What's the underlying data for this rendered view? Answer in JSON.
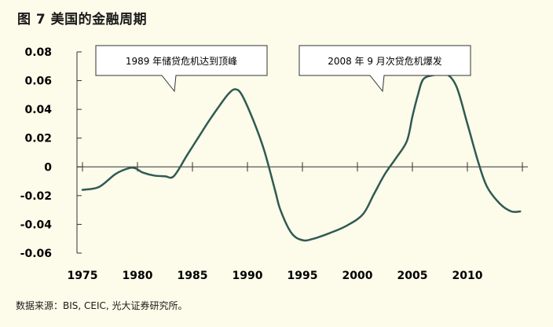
{
  "title": "图 7  美国的金融周期",
  "source": "数据来源：BIS, CEIC, 光大证券研究所。",
  "colors": {
    "line": "#2f5a55",
    "axis": "#333333",
    "background": "#fdfbe9"
  },
  "chart_data": {
    "type": "line",
    "title": "图 7  美国的金融周期",
    "xlabel": "",
    "ylabel": "",
    "xlim": [
      1974.5,
      2015.5
    ],
    "ylim": [
      -0.06,
      0.08
    ],
    "yticks": [
      0.08,
      0.06,
      0.04,
      0.02,
      0,
      -0.02,
      -0.04,
      -0.06
    ],
    "ytick_labels": [
      "0.08",
      "0.06",
      "0.04",
      "0.02",
      "0",
      "-0.02",
      "-0.04",
      "-0.06"
    ],
    "xticks": [
      1975,
      1980,
      1985,
      1990,
      1995,
      2000,
      2005,
      2010
    ],
    "xtick_labels": [
      "1975",
      "1980",
      "1985",
      "1990",
      "1995",
      "2000",
      "2005",
      "2010"
    ],
    "grid": false,
    "series": [
      {
        "x": [
          1975.0,
          1976.5,
          1978.0,
          1979.2,
          1979.8,
          1980.5,
          1981.5,
          1982.5,
          1983.3,
          1984.5,
          1985.5,
          1986.5,
          1987.5,
          1988.3,
          1988.9,
          1989.5,
          1990.5,
          1991.5,
          1992.5,
          1993.0,
          1994.0,
          1995.0,
          1996.0,
          1997.5,
          1999.0,
          2000.5,
          2001.5,
          2002.5,
          2003.5,
          2004.5,
          2005.0,
          2005.5,
          2006.0,
          2007.0,
          2008.0,
          2009.0,
          2010.0,
          2011.0,
          2011.8,
          2013.0,
          2014.0,
          2014.8
        ],
        "y": [
          -0.016,
          -0.014,
          -0.005,
          -0.001,
          -0.001,
          -0.004,
          -0.006,
          -0.0065,
          -0.0065,
          0.008,
          0.02,
          0.032,
          0.043,
          0.051,
          0.054,
          0.05,
          0.033,
          0.012,
          -0.016,
          -0.03,
          -0.046,
          -0.051,
          -0.05,
          -0.046,
          -0.041,
          -0.033,
          -0.019,
          -0.005,
          0.006,
          0.018,
          0.035,
          0.05,
          0.061,
          0.064,
          0.065,
          0.056,
          0.03,
          0.003,
          -0.014,
          -0.026,
          -0.031,
          -0.031
        ]
      }
    ],
    "annotations": [
      {
        "text": "1989 年储贷危机达到顶峰",
        "x": 1989.5,
        "y": 0.054
      },
      {
        "text": "2008 年 9 月次贷危机爆发",
        "x": 2005.5,
        "y": 0.065
      }
    ]
  }
}
